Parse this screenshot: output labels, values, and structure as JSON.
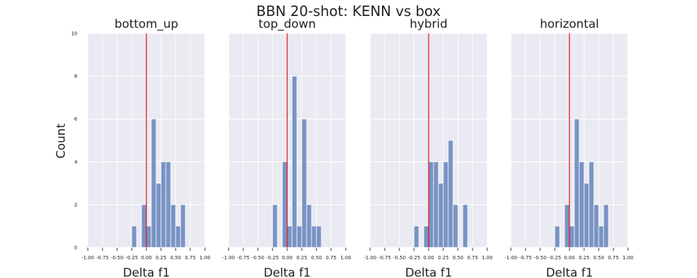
{
  "figure": {
    "title": "BBN 20-shot: KENN vs box",
    "ylabel": "Count",
    "colors": {
      "bar": "#7993c4",
      "bar_edge": "#ffffff",
      "panel_bg": "#eaeaf2",
      "grid": "#ffffff",
      "ref_line": "#e31a1c"
    }
  },
  "chart_data": [
    {
      "type": "bar",
      "title": "bottom_up",
      "xlabel": "Delta f1",
      "ylabel": "Count",
      "xlim": [
        -1.0,
        1.0
      ],
      "ylim": [
        0,
        10
      ],
      "grid": true,
      "reference_line_x": 0.0,
      "bin_width": 0.0833,
      "x": [
        -0.25,
        -0.0833,
        0.0,
        0.0833,
        0.1667,
        0.25,
        0.3333,
        0.4167,
        0.5,
        0.5833,
        0.6667
      ],
      "values": [
        1,
        2,
        1,
        6,
        3,
        4,
        4,
        2,
        1,
        2,
        0
      ]
    },
    {
      "type": "bar",
      "title": "top_down",
      "xlabel": "Delta f1",
      "ylabel": "",
      "xlim": [
        -1.0,
        1.0
      ],
      "ylim": [
        0,
        10
      ],
      "grid": true,
      "reference_line_x": 0.0,
      "bin_width": 0.0833,
      "x": [
        -0.25,
        -0.0833,
        0.0,
        0.0833,
        0.1667,
        0.25,
        0.3333,
        0.4167,
        0.5,
        0.5833,
        0.6667
      ],
      "values": [
        2,
        4,
        1,
        8,
        1,
        6,
        2,
        1,
        1,
        0,
        0
      ]
    },
    {
      "type": "bar",
      "title": "hybrid",
      "xlabel": "Delta f1",
      "ylabel": "",
      "xlim": [
        -1.0,
        1.0
      ],
      "ylim": [
        0,
        10
      ],
      "grid": true,
      "reference_line_x": 0.0,
      "bin_width": 0.0833,
      "x": [
        -0.25,
        -0.0833,
        0.0,
        0.0833,
        0.1667,
        0.25,
        0.3333,
        0.4167,
        0.5,
        0.5833,
        0.6667
      ],
      "values": [
        1,
        1,
        4,
        4,
        3,
        4,
        5,
        2,
        0,
        2,
        0
      ]
    },
    {
      "type": "bar",
      "title": "horizontal",
      "xlabel": "Delta f1",
      "ylabel": "",
      "xlim": [
        -1.0,
        1.0
      ],
      "ylim": [
        0,
        10
      ],
      "grid": true,
      "reference_line_x": 0.0,
      "bin_width": 0.0833,
      "x": [
        -0.25,
        -0.0833,
        0.0,
        0.0833,
        0.1667,
        0.25,
        0.3333,
        0.4167,
        0.5,
        0.5833,
        0.6667
      ],
      "values": [
        1,
        2,
        1,
        6,
        4,
        3,
        4,
        2,
        1,
        2,
        0
      ]
    }
  ],
  "axes": {
    "x_ticks": [
      "-1.00",
      "-0.75",
      "-0.50",
      "-0.25",
      "0.00",
      "0.25",
      "0.50",
      "0.75",
      "1.00"
    ],
    "x_tick_values": [
      -1.0,
      -0.75,
      -0.5,
      -0.25,
      0.0,
      0.25,
      0.5,
      0.75,
      1.0
    ],
    "y_ticks": [
      "0",
      "2",
      "4",
      "6",
      "8",
      "10"
    ],
    "y_tick_values": [
      0,
      2,
      4,
      6,
      8,
      10
    ]
  }
}
